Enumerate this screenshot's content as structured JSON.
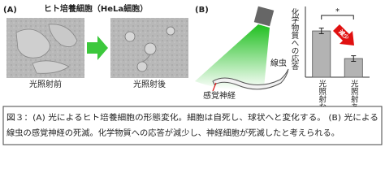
{
  "figure": {
    "panel_a": {
      "label": "(A)",
      "title": "ヒト培養細胞（HeLa細胞）",
      "before": "光照射前",
      "after": "光照射後"
    },
    "panel_b": {
      "label": "(B)",
      "worm": "線虫",
      "neuron": "感覚神経"
    },
    "caption": [
      "図３：(A) 光によるヒト培養細胞の形態変化。細胞は自死し、球状へと変化する。 (B) 光による",
      "線虫の感覚神経の死滅。化学物質への応答が減少し、神経細胞が死滅したと考えられる。"
    ]
  },
  "chart_data": {
    "type": "bar",
    "y_label": "化学物質への応答",
    "categories": [
      "光照射なし",
      "光照射あり"
    ],
    "values": [
      0.67,
      0.27
    ],
    "errors": [
      0.04,
      0.04
    ],
    "color": "#b3b3b3",
    "ylim": [
      0,
      1
    ],
    "significance": "*",
    "annotation": "減少"
  }
}
